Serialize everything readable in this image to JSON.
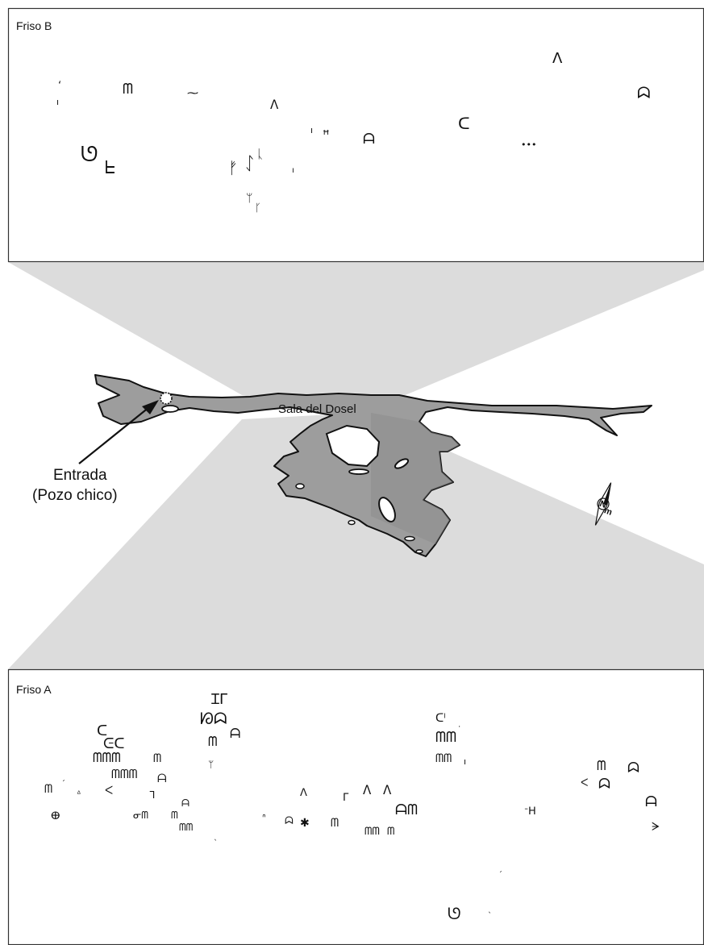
{
  "panels": {
    "top": {
      "label": "Friso B"
    },
    "bottom": {
      "label": "Friso A"
    }
  },
  "map": {
    "hall_label": "Sala del Dosel",
    "entrance_label_line1": "Entrada",
    "entrance_label_line2": "(Pozo chico)",
    "compass_letter": "N",
    "compass_suffix": "m"
  },
  "colors": {
    "frame": "#333333",
    "projection": "#d9d9d9",
    "cave_fill": "#9a9a9a",
    "cave_dark": "#7d7d7d",
    "ink": "#111111"
  }
}
